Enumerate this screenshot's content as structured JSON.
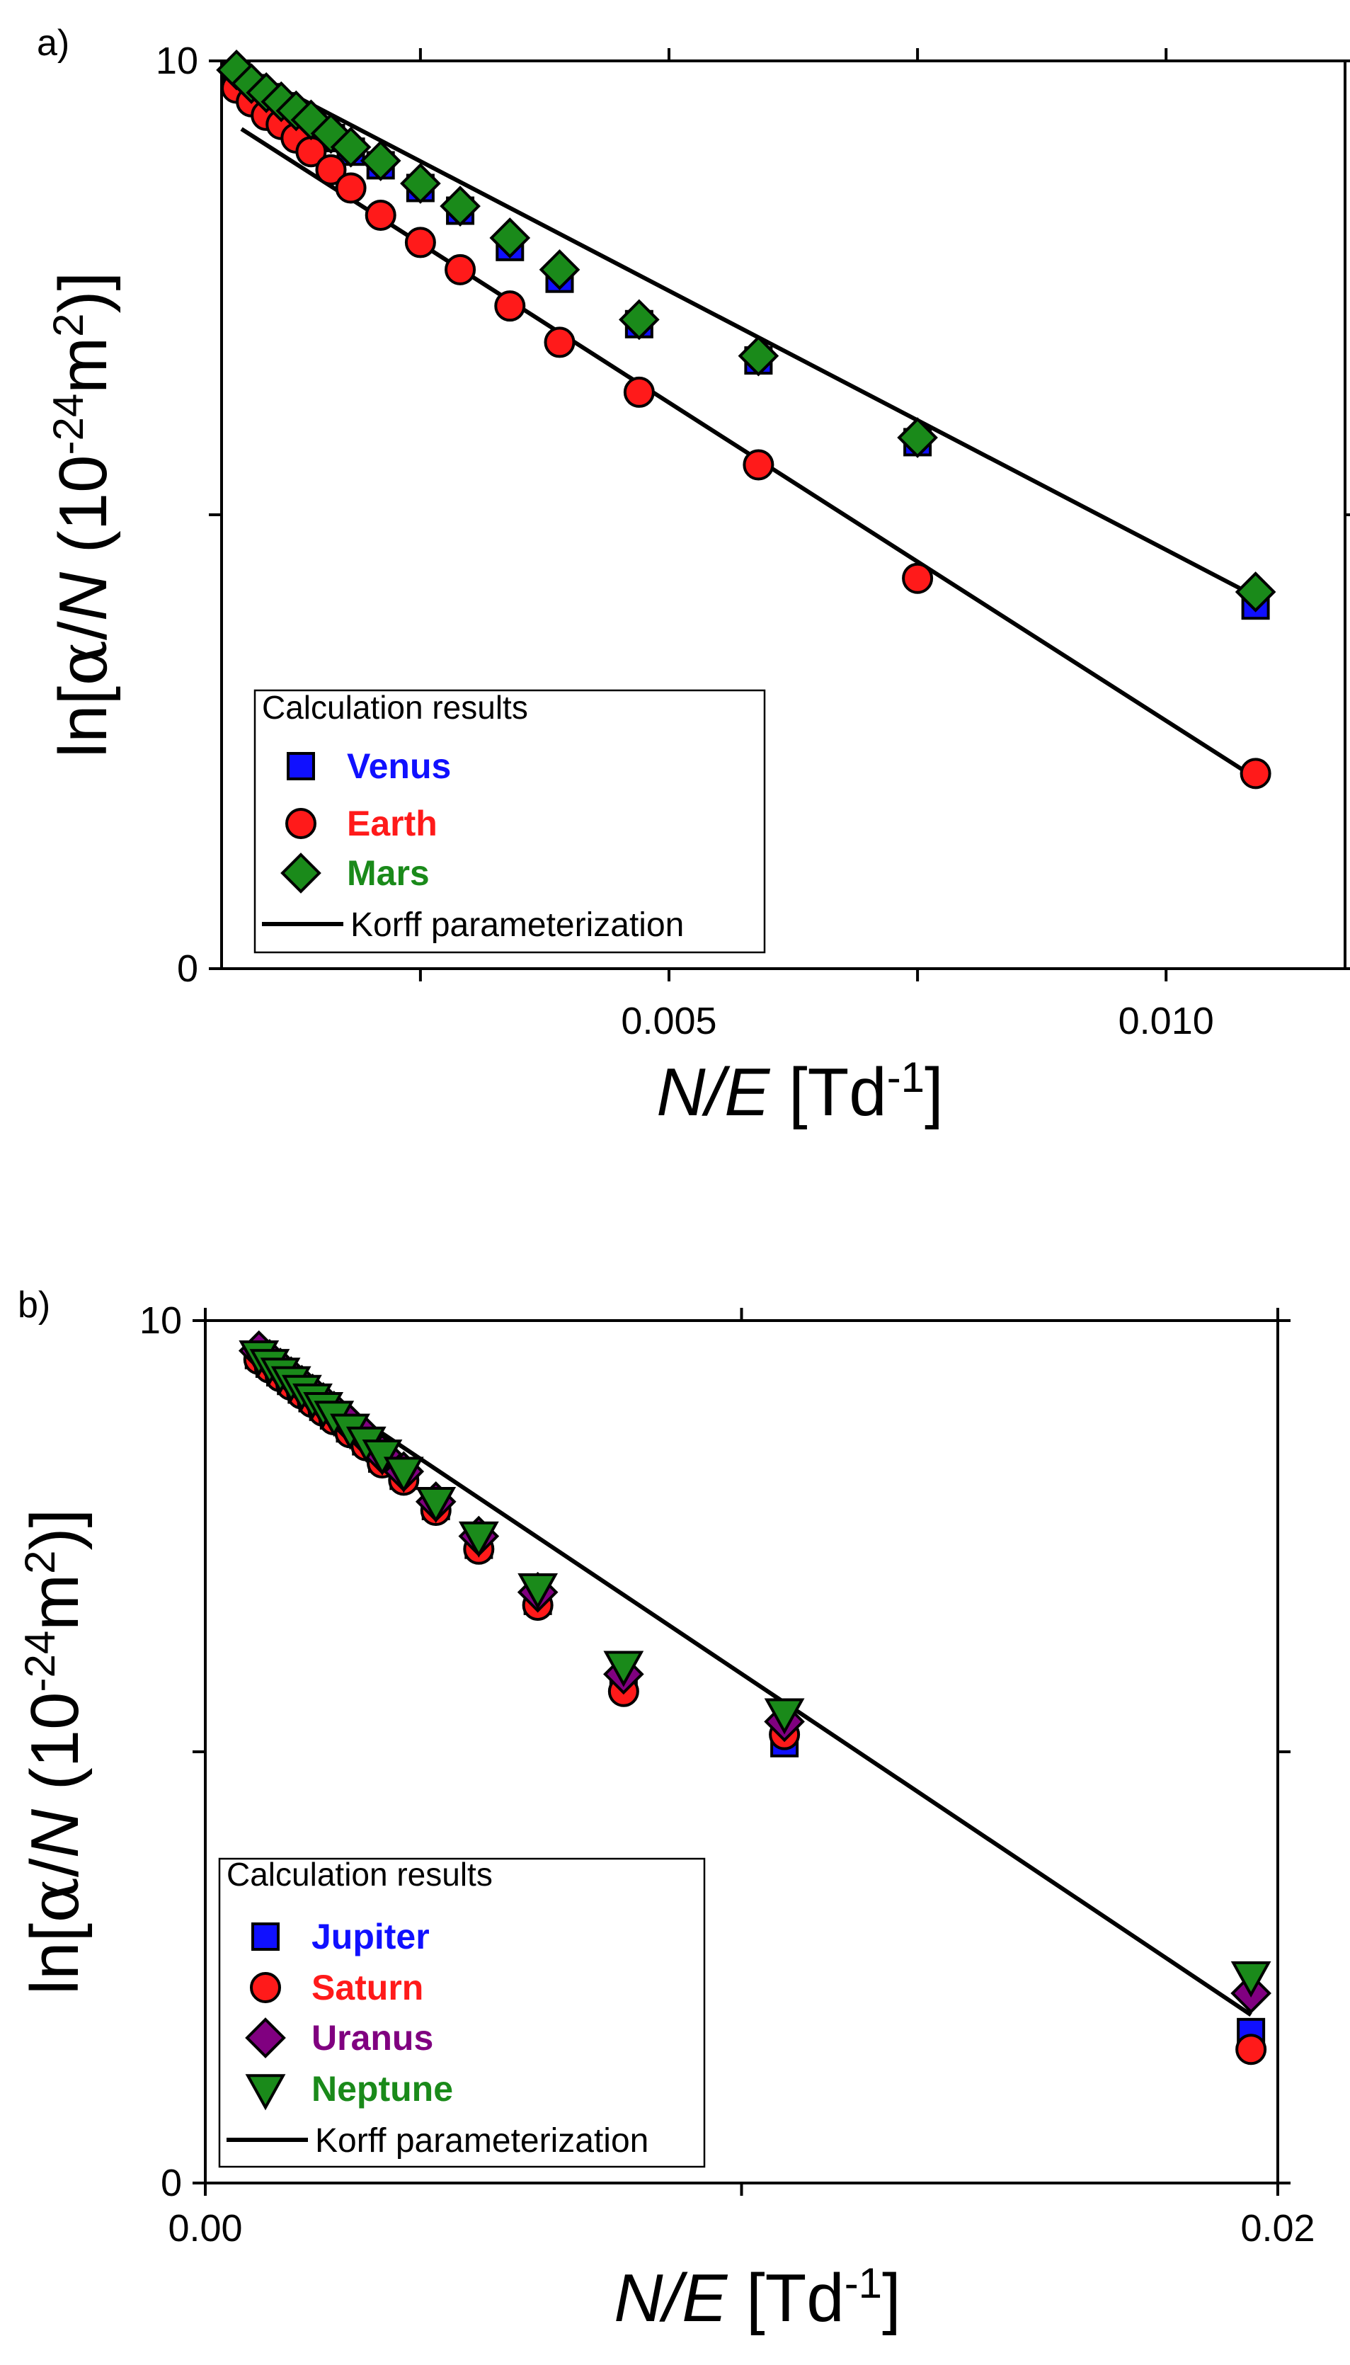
{
  "chart_data": [
    {
      "type": "scatter",
      "panel_label": "a)",
      "xlabel": {
        "italic": "N/E",
        "unit": "Td",
        "sup": "-1"
      },
      "ylabel": {
        "prefix": "ln[",
        "alpha": "α",
        "mid": "/",
        "italic": "N",
        "open": " (10",
        "sup1": "-24",
        "m": "m",
        "sup2": "2",
        "close": ")]"
      },
      "xlim": [
        0.0005,
        0.0118
      ],
      "ylim": [
        0,
        10
      ],
      "x_ticks": [
        {
          "value": 0.005,
          "label": "0.005"
        },
        {
          "value": 0.01,
          "label": "0.010"
        }
      ],
      "x_minor_ticks": [
        0.0025,
        0.0075
      ],
      "y_ticks": [
        {
          "value": 0,
          "label": "0"
        },
        {
          "value": 10,
          "label": "10"
        }
      ],
      "y_minor_ticks": [
        5
      ],
      "legend": {
        "title": "Calculation results",
        "position": "bottom-left",
        "line_label": "Korff parameterization"
      },
      "series": [
        {
          "name": "Venus",
          "color": "#1010ff",
          "marker": "square",
          "x": [
            0.00065,
            0.0008,
            0.00095,
            0.0011,
            0.00125,
            0.0014,
            0.0016,
            0.0018,
            0.0021,
            0.0025,
            0.0029,
            0.0034,
            0.0039,
            0.0047,
            0.0059,
            0.0075,
            0.0109
          ],
          "y": [
            9.85,
            9.7,
            9.6,
            9.5,
            9.4,
            9.3,
            9.15,
            9.0,
            8.85,
            8.6,
            8.35,
            7.95,
            7.6,
            7.1,
            6.7,
            5.8,
            4.0
          ]
        },
        {
          "name": "Earth",
          "color": "#ff1a1a",
          "marker": "circle",
          "x": [
            0.00065,
            0.0008,
            0.00095,
            0.0011,
            0.00125,
            0.0014,
            0.0016,
            0.0018,
            0.0021,
            0.0025,
            0.0029,
            0.0034,
            0.0039,
            0.0047,
            0.0059,
            0.0075,
            0.0109
          ],
          "y": [
            9.7,
            9.55,
            9.4,
            9.3,
            9.15,
            9.0,
            8.8,
            8.6,
            8.3,
            8.0,
            7.7,
            7.3,
            6.9,
            6.35,
            5.55,
            4.3,
            2.15
          ]
        },
        {
          "name": "Mars",
          "color": "#1a8a1a",
          "marker": "diamond",
          "x": [
            0.00065,
            0.0008,
            0.00095,
            0.0011,
            0.00125,
            0.0014,
            0.0016,
            0.0018,
            0.0021,
            0.0025,
            0.0029,
            0.0034,
            0.0039,
            0.0047,
            0.0059,
            0.0075,
            0.0109
          ],
          "y": [
            9.9,
            9.75,
            9.65,
            9.55,
            9.45,
            9.35,
            9.2,
            9.05,
            8.9,
            8.65,
            8.4,
            8.05,
            7.7,
            7.15,
            6.75,
            5.85,
            4.15
          ]
        }
      ],
      "lines": [
        {
          "name": "Korff parameterization (upper)",
          "x": [
            0.00065,
            0.0109
          ],
          "y": [
            9.95,
            4.1
          ]
        },
        {
          "name": "Korff parameterization (lower)",
          "x": [
            0.0007,
            0.0109
          ],
          "y": [
            9.25,
            2.1
          ]
        }
      ]
    },
    {
      "type": "scatter",
      "panel_label": "b)",
      "xlabel": {
        "italic": "N/E",
        "unit": "Td",
        "sup": "-1"
      },
      "ylabel": {
        "prefix": "ln[",
        "alpha": "α",
        "mid": "/",
        "italic": "N",
        "open": " (10",
        "sup1": "-24",
        "m": "m",
        "sup2": "2",
        "close": ")]"
      },
      "xlim": [
        0.0,
        0.02
      ],
      "ylim": [
        0,
        10
      ],
      "x_ticks": [
        {
          "value": 0.0,
          "label": "0.00"
        },
        {
          "value": 0.02,
          "label": "0.02"
        }
      ],
      "x_minor_ticks": [
        0.01
      ],
      "y_ticks": [
        {
          "value": 0,
          "label": "0"
        },
        {
          "value": 10,
          "label": "10"
        }
      ],
      "y_minor_ticks": [
        5
      ],
      "legend": {
        "title": "Calculation results",
        "position": "bottom-left",
        "line_label": "Korff parameterization"
      },
      "series": [
        {
          "name": "Jupiter",
          "color": "#1010ff",
          "marker": "square",
          "x": [
            0.001,
            0.0012,
            0.0014,
            0.0016,
            0.0018,
            0.002,
            0.0022,
            0.0024,
            0.0027,
            0.003,
            0.0033,
            0.0037,
            0.0043,
            0.0051,
            0.0062,
            0.0078,
            0.0108,
            0.0195
          ],
          "y": [
            9.6,
            9.5,
            9.4,
            9.3,
            9.2,
            9.1,
            9.0,
            8.9,
            8.75,
            8.6,
            8.4,
            8.2,
            7.85,
            7.4,
            6.75,
            5.8,
            5.1,
            1.75
          ]
        },
        {
          "name": "Saturn",
          "color": "#ff1a1a",
          "marker": "circle",
          "x": [
            0.001,
            0.0012,
            0.0014,
            0.0016,
            0.0018,
            0.002,
            0.0022,
            0.0024,
            0.0027,
            0.003,
            0.0033,
            0.0037,
            0.0043,
            0.0051,
            0.0062,
            0.0078,
            0.0108,
            0.0195
          ],
          "y": [
            9.55,
            9.45,
            9.35,
            9.25,
            9.15,
            9.05,
            8.95,
            8.85,
            8.7,
            8.55,
            8.35,
            8.15,
            7.8,
            7.35,
            6.7,
            5.7,
            5.2,
            1.55
          ]
        },
        {
          "name": "Uranus",
          "color": "#800080",
          "marker": "diamond",
          "x": [
            0.001,
            0.0012,
            0.0014,
            0.0016,
            0.0018,
            0.002,
            0.0022,
            0.0024,
            0.0027,
            0.003,
            0.0033,
            0.0037,
            0.0043,
            0.0051,
            0.0062,
            0.0078,
            0.0108,
            0.0195
          ],
          "y": [
            9.65,
            9.55,
            9.45,
            9.35,
            9.25,
            9.15,
            9.05,
            8.95,
            8.8,
            8.65,
            8.45,
            8.25,
            7.9,
            7.5,
            6.85,
            5.9,
            5.35,
            2.2
          ]
        },
        {
          "name": "Neptune",
          "color": "#1a8a1a",
          "marker": "triangle-down",
          "x": [
            0.001,
            0.0012,
            0.0014,
            0.0016,
            0.0018,
            0.002,
            0.0022,
            0.0024,
            0.0027,
            0.003,
            0.0033,
            0.0037,
            0.0043,
            0.0051,
            0.0062,
            0.0078,
            0.0108,
            0.0195
          ],
          "y": [
            9.6,
            9.5,
            9.4,
            9.3,
            9.2,
            9.1,
            9.0,
            8.9,
            8.75,
            8.6,
            8.45,
            8.25,
            7.9,
            7.5,
            6.9,
            6.0,
            5.45,
            2.4
          ]
        }
      ],
      "lines": [
        {
          "name": "Korff parameterization",
          "x": [
            0.001,
            0.0195
          ],
          "y": [
            9.65,
            1.95
          ]
        }
      ]
    }
  ]
}
